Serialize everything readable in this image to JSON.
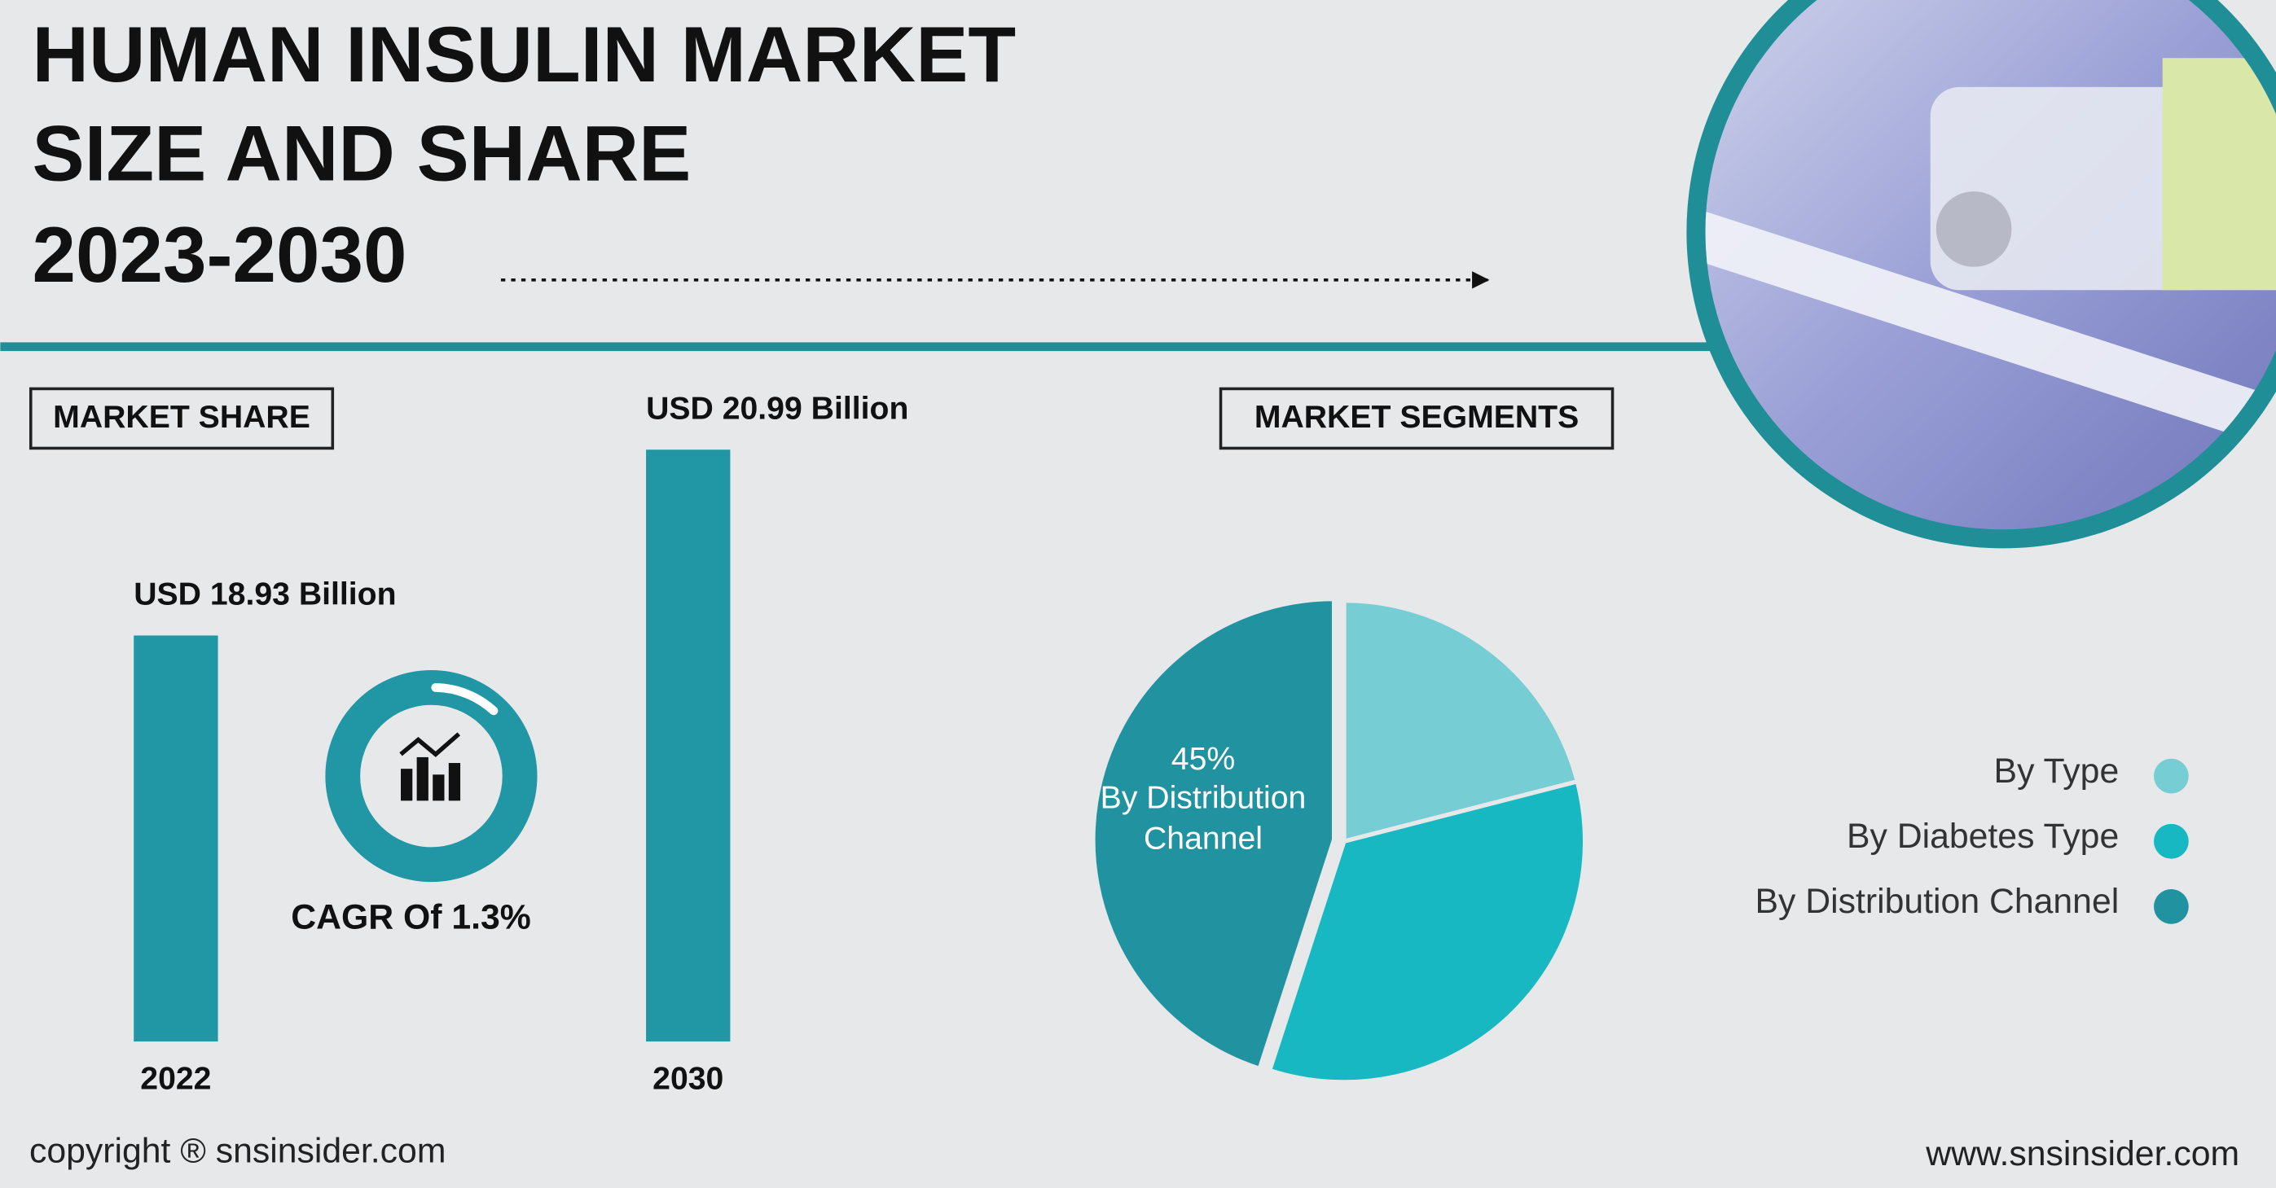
{
  "header": {
    "title_lines": [
      "HUMAN INSULIN MARKET",
      "SIZE AND SHARE",
      "2023-2030"
    ]
  },
  "chart_data": [
    {
      "type": "bar",
      "title": "MARKET SHARE",
      "categories": [
        "2022",
        "2030"
      ],
      "values": [
        18.93,
        20.99
      ],
      "value_labels": [
        "USD 18.93 Billion",
        "USD 20.99 Billion"
      ],
      "color": "#2196a4",
      "ylim": [
        14.43,
        20.99
      ]
    },
    {
      "type": "pie",
      "title": "MARKET SEGMENTS",
      "categories": [
        "By Type",
        "By Diabetes Type",
        "By Distribution Channel"
      ],
      "values": [
        21,
        34,
        45
      ],
      "value_labels": [
        null,
        null,
        "45%"
      ],
      "colors": [
        "#76cdd3",
        "#17b8c2",
        "#2193a0"
      ]
    }
  ],
  "cagr": "CAGR Of 1.3%",
  "footer": {
    "copyright": "copyright ® snsinsider.com",
    "website": "www.snsinsider.com"
  }
}
